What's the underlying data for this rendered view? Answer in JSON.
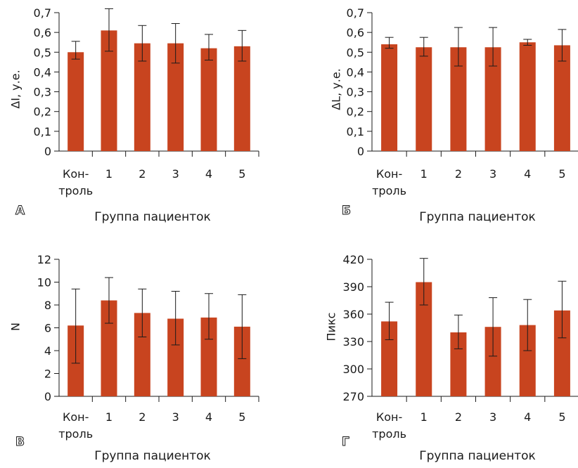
{
  "x_axis_title": "Группа пациенток",
  "categories": [
    "Кон-\nтроль",
    "1",
    "2",
    "3",
    "4",
    "5"
  ],
  "bar_color": "#c8441f",
  "chart_data": [
    {
      "panel": "А",
      "type": "bar",
      "xlabel": "Группа пациенток",
      "ylabel": "ΔI, у.е.",
      "ylim": [
        0,
        0.7
      ],
      "yticks": [
        "0",
        "0,1",
        "0,2",
        "0,3",
        "0,4",
        "0,5",
        "0,6",
        "0,7"
      ],
      "categories": [
        "Кон-\nтроль",
        "1",
        "2",
        "3",
        "4",
        "5"
      ],
      "values": [
        0.5,
        0.61,
        0.545,
        0.545,
        0.52,
        0.53
      ],
      "error_low": [
        0.465,
        0.505,
        0.455,
        0.445,
        0.46,
        0.455
      ],
      "error_high": [
        0.555,
        0.72,
        0.635,
        0.645,
        0.59,
        0.61
      ]
    },
    {
      "panel": "Б",
      "type": "bar",
      "xlabel": "Группа пациенток",
      "ylabel": "ΔL, у.е.",
      "ylim": [
        0,
        0.7
      ],
      "yticks": [
        "0",
        "0,1",
        "0,2",
        "0,3",
        "0,4",
        "0,5",
        "0,6",
        "0,7"
      ],
      "categories": [
        "Кон-\nтроль",
        "1",
        "2",
        "3",
        "4",
        "5"
      ],
      "values": [
        0.54,
        0.525,
        0.525,
        0.525,
        0.55,
        0.535
      ],
      "error_low": [
        0.52,
        0.48,
        0.43,
        0.43,
        0.535,
        0.455
      ],
      "error_high": [
        0.575,
        0.575,
        0.625,
        0.625,
        0.565,
        0.615
      ]
    },
    {
      "panel": "В",
      "type": "bar",
      "xlabel": "Группа пациенток",
      "ylabel": "N",
      "ylim": [
        0,
        12
      ],
      "yticks": [
        "0",
        "2",
        "4",
        "6",
        "8",
        "10",
        "12"
      ],
      "categories": [
        "Кон-\nтроль",
        "1",
        "2",
        "3",
        "4",
        "5"
      ],
      "values": [
        6.2,
        8.4,
        7.3,
        6.8,
        6.9,
        6.1
      ],
      "error_low": [
        2.9,
        6.4,
        5.2,
        4.5,
        5.0,
        3.3
      ],
      "error_high": [
        9.4,
        10.4,
        9.4,
        9.2,
        9.0,
        8.9
      ]
    },
    {
      "panel": "Г",
      "type": "bar",
      "xlabel": "Группа пациенток",
      "ylabel": "Пикс",
      "ylim": [
        270,
        420
      ],
      "yticks": [
        "270",
        "300",
        "330",
        "360",
        "390",
        "420"
      ],
      "categories": [
        "Кон-\nтроль",
        "1",
        "2",
        "3",
        "4",
        "5"
      ],
      "values": [
        352,
        395,
        340,
        346,
        348,
        364
      ],
      "error_low": [
        332,
        370,
        322,
        314,
        320,
        334
      ],
      "error_high": [
        373,
        421,
        359,
        378,
        376,
        396
      ]
    }
  ]
}
